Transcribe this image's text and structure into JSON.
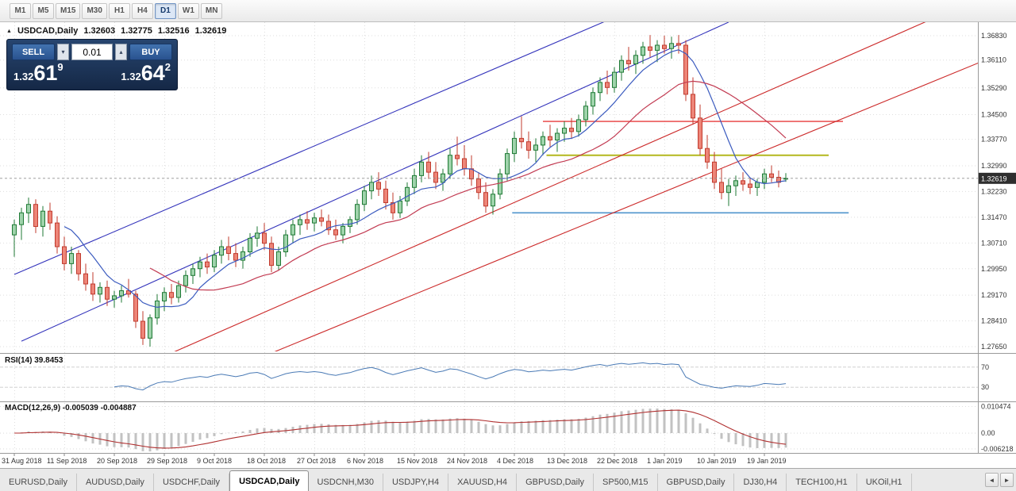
{
  "toolbar": {
    "timeframes": [
      {
        "label": "M1"
      },
      {
        "label": "M5"
      },
      {
        "label": "M15"
      },
      {
        "label": "M30"
      },
      {
        "label": "H1"
      },
      {
        "label": "H4"
      },
      {
        "label": "D1",
        "active": true
      },
      {
        "label": "W1"
      },
      {
        "label": "MN"
      }
    ]
  },
  "quote_bar": {
    "collapse_icon": "▲",
    "symbol": "USDCAD,Daily",
    "open": "1.32603",
    "high": "1.32775",
    "low": "1.32516",
    "close": "1.32619"
  },
  "one_click": {
    "sell_label": "SELL",
    "buy_label": "BUY",
    "lot_size": "0.01",
    "dropdown_icon": "▾",
    "up_icon": "▴",
    "bid": {
      "prefix": "1.32",
      "big": "61",
      "sup": "9"
    },
    "ask": {
      "prefix": "1.32",
      "big": "64",
      "sup": "2"
    }
  },
  "indicators": {
    "rsi_label": "RSI(14) 39.8453",
    "macd_label": "MACD(12,26,9) -0.005039 -0.004887"
  },
  "chart_data": {
    "type": "candlestick",
    "symbol": "USDCAD",
    "timeframe": "Daily",
    "current_price": 1.32619,
    "price_ticks": [
      1.3683,
      1.3611,
      1.3529,
      1.345,
      1.3377,
      1.3299,
      1.3223,
      1.3147,
      1.3071,
      1.2995,
      1.2917,
      1.2841,
      1.2765
    ],
    "date_labels": [
      "31 Aug 2018",
      "11 Sep 2018",
      "20 Sep 2018",
      "29 Sep 2018",
      "9 Oct 2018",
      "18 Oct 2018",
      "27 Oct 2018",
      "6 Nov 2018",
      "15 Nov 2018",
      "24 Nov 2018",
      "4 Dec 2018",
      "13 Dec 2018",
      "22 Dec 2018",
      "1 Jan 2019",
      "10 Jan 2019",
      "19 Jan 2019"
    ],
    "label_every": 7,
    "ma_fast_period": 8,
    "ma_slow_period": 20,
    "horizontal_lines": [
      {
        "price": 1.343,
        "color": "#e83b3b",
        "width": 1.4,
        "from_bar": 74,
        "to_bar": 116
      },
      {
        "price": 1.333,
        "color": "#b4b81e",
        "width": 2,
        "from_bar": 74.5,
        "to_bar": 114
      },
      {
        "price": 1.316,
        "color": "#4f94cd",
        "width": 1.6,
        "from_bar": 69.7,
        "to_bar": 116.8
      }
    ],
    "trend_lines": [
      {
        "color": "#3333bb",
        "bar1": 0,
        "price1": 1.2978,
        "bar2": 83,
        "price2": 1.3728
      },
      {
        "color": "#3333bb",
        "bar1": 1,
        "price1": 1.2781,
        "bar2": 100,
        "price2": 1.3723
      },
      {
        "color": "#cc2a2a",
        "bar1": 22,
        "price1": 1.2746,
        "bar2": 128,
        "price2": 1.3728
      },
      {
        "color": "#cc2a2a",
        "bar1": 36,
        "price1": 1.2746,
        "bar2": 141,
        "price2": 1.3655
      }
    ],
    "rsi": {
      "period": 14,
      "levels": [
        70,
        30
      ],
      "current": "39.8453"
    },
    "macd": {
      "fast": 12,
      "slow": 26,
      "signal": 9,
      "current_main": "-0.005039",
      "current_signal": "-0.004887",
      "scale_labels": [
        {
          "text": "0.010474",
          "value": 0.010474
        },
        {
          "text": "0.00",
          "value": 0
        },
        {
          "text": "-0.006218",
          "value": -0.006218
        }
      ]
    },
    "colors": {
      "bull_fill": "#9fd3ab",
      "bull_stroke": "#1f7a35",
      "bear_fill": "#ed8578",
      "bear_stroke": "#c13b2e",
      "ma_fast": "#3b5bbf",
      "ma_slow": "#c23b52",
      "rsi_line": "#4a7ab5",
      "macd_hist": "#c2c2c2",
      "macd_signal": "#b03030",
      "grid": "#dedede",
      "scale_text": "#333333",
      "badge_bg": "#2e2e2e"
    },
    "ohlc": [
      [
        1.3095,
        1.314,
        1.303,
        1.3125
      ],
      [
        1.3125,
        1.3175,
        1.308,
        1.316
      ],
      [
        1.316,
        1.3205,
        1.313,
        1.3185
      ],
      [
        1.3185,
        1.32,
        1.31,
        1.312
      ],
      [
        1.312,
        1.318,
        1.309,
        1.3165
      ],
      [
        1.3165,
        1.319,
        1.311,
        1.313
      ],
      [
        1.313,
        1.315,
        1.304,
        1.306
      ],
      [
        1.306,
        1.309,
        1.299,
        1.301
      ],
      [
        1.301,
        1.306,
        1.298,
        1.304
      ],
      [
        1.304,
        1.305,
        1.296,
        1.298
      ],
      [
        1.298,
        1.301,
        1.293,
        1.295
      ],
      [
        1.295,
        1.2985,
        1.29,
        1.292
      ],
      [
        1.292,
        1.2955,
        1.2895,
        1.294
      ],
      [
        1.294,
        1.296,
        1.2885,
        1.2905
      ],
      [
        1.2905,
        1.293,
        1.288,
        1.2915
      ],
      [
        1.2915,
        1.2945,
        1.2895,
        1.293
      ],
      [
        1.293,
        1.2965,
        1.291,
        1.292
      ],
      [
        1.292,
        1.293,
        1.282,
        1.284
      ],
      [
        1.284,
        1.287,
        1.277,
        1.279
      ],
      [
        1.279,
        1.286,
        1.2765,
        1.285
      ],
      [
        1.285,
        1.292,
        1.283,
        1.29
      ],
      [
        1.29,
        1.294,
        1.287,
        1.2925
      ],
      [
        1.2925,
        1.295,
        1.289,
        1.291
      ],
      [
        1.291,
        1.296,
        1.2895,
        1.2945
      ],
      [
        1.2945,
        1.299,
        1.2925,
        1.2975
      ],
      [
        1.2975,
        1.301,
        1.295,
        1.2995
      ],
      [
        1.2995,
        1.303,
        1.297,
        1.3015
      ],
      [
        1.3015,
        1.304,
        1.298,
        1.3
      ],
      [
        1.3,
        1.305,
        1.2985,
        1.3035
      ],
      [
        1.3035,
        1.308,
        1.301,
        1.306
      ],
      [
        1.306,
        1.309,
        1.302,
        1.304
      ],
      [
        1.304,
        1.307,
        1.3,
        1.302
      ],
      [
        1.302,
        1.306,
        1.2995,
        1.3045
      ],
      [
        1.3045,
        1.31,
        1.303,
        1.3085
      ],
      [
        1.3085,
        1.312,
        1.306,
        1.31
      ],
      [
        1.31,
        1.313,
        1.305,
        1.307
      ],
      [
        1.307,
        1.309,
        1.2985,
        1.3005
      ],
      [
        1.3005,
        1.306,
        1.299,
        1.3045
      ],
      [
        1.3045,
        1.311,
        1.303,
        1.3095
      ],
      [
        1.3095,
        1.314,
        1.307,
        1.3125
      ],
      [
        1.3125,
        1.3155,
        1.3095,
        1.314
      ],
      [
        1.314,
        1.3165,
        1.311,
        1.313
      ],
      [
        1.313,
        1.316,
        1.3105,
        1.3145
      ],
      [
        1.3145,
        1.317,
        1.312,
        1.3135
      ],
      [
        1.3135,
        1.3155,
        1.3095,
        1.311
      ],
      [
        1.311,
        1.314,
        1.308,
        1.3095
      ],
      [
        1.3095,
        1.313,
        1.307,
        1.312
      ],
      [
        1.312,
        1.315,
        1.31,
        1.314
      ],
      [
        1.314,
        1.32,
        1.3125,
        1.3185
      ],
      [
        1.3185,
        1.324,
        1.3165,
        1.3225
      ],
      [
        1.3225,
        1.327,
        1.32,
        1.325
      ],
      [
        1.325,
        1.328,
        1.321,
        1.323
      ],
      [
        1.323,
        1.3255,
        1.317,
        1.319
      ],
      [
        1.319,
        1.322,
        1.314,
        1.316
      ],
      [
        1.316,
        1.321,
        1.3145,
        1.3195
      ],
      [
        1.3195,
        1.325,
        1.318,
        1.3235
      ],
      [
        1.3235,
        1.329,
        1.3215,
        1.327
      ],
      [
        1.327,
        1.333,
        1.325,
        1.331
      ],
      [
        1.331,
        1.334,
        1.326,
        1.328
      ],
      [
        1.328,
        1.331,
        1.323,
        1.325
      ],
      [
        1.325,
        1.329,
        1.3225,
        1.3275
      ],
      [
        1.3275,
        1.335,
        1.326,
        1.333
      ],
      [
        1.333,
        1.3385,
        1.33,
        1.332
      ],
      [
        1.332,
        1.336,
        1.327,
        1.329
      ],
      [
        1.329,
        1.333,
        1.324,
        1.326
      ],
      [
        1.326,
        1.328,
        1.32,
        1.322
      ],
      [
        1.322,
        1.325,
        1.316,
        1.318
      ],
      [
        1.318,
        1.323,
        1.3155,
        1.3215
      ],
      [
        1.3215,
        1.329,
        1.32,
        1.3275
      ],
      [
        1.3275,
        1.335,
        1.3255,
        1.3335
      ],
      [
        1.3335,
        1.34,
        1.331,
        1.338
      ],
      [
        1.338,
        1.3445,
        1.335,
        1.337
      ],
      [
        1.337,
        1.34,
        1.332,
        1.3345
      ],
      [
        1.3345,
        1.338,
        1.331,
        1.336
      ],
      [
        1.336,
        1.34,
        1.333,
        1.3385
      ],
      [
        1.3385,
        1.342,
        1.3355,
        1.3375
      ],
      [
        1.3375,
        1.341,
        1.334,
        1.3395
      ],
      [
        1.3395,
        1.343,
        1.337,
        1.341
      ],
      [
        1.341,
        1.344,
        1.338,
        1.34
      ],
      [
        1.34,
        1.345,
        1.3385,
        1.3435
      ],
      [
        1.3435,
        1.349,
        1.3415,
        1.3475
      ],
      [
        1.3475,
        1.353,
        1.345,
        1.3515
      ],
      [
        1.3515,
        1.356,
        1.349,
        1.3545
      ],
      [
        1.3545,
        1.358,
        1.351,
        1.353
      ],
      [
        1.353,
        1.359,
        1.3515,
        1.3575
      ],
      [
        1.3575,
        1.3625,
        1.355,
        1.361
      ],
      [
        1.361,
        1.365,
        1.358,
        1.36
      ],
      [
        1.36,
        1.364,
        1.357,
        1.3625
      ],
      [
        1.3625,
        1.3665,
        1.36,
        1.365
      ],
      [
        1.365,
        1.3685,
        1.362,
        1.364
      ],
      [
        1.364,
        1.367,
        1.3605,
        1.3655
      ],
      [
        1.3655,
        1.3683,
        1.363,
        1.3645
      ],
      [
        1.3645,
        1.368,
        1.3615,
        1.366
      ],
      [
        1.366,
        1.3685,
        1.363,
        1.3655
      ],
      [
        1.3655,
        1.367,
        1.349,
        1.351
      ],
      [
        1.351,
        1.356,
        1.342,
        1.344
      ],
      [
        1.344,
        1.348,
        1.333,
        1.335
      ],
      [
        1.335,
        1.339,
        1.329,
        1.331
      ],
      [
        1.331,
        1.334,
        1.323,
        1.325
      ],
      [
        1.325,
        1.329,
        1.32,
        1.322
      ],
      [
        1.322,
        1.326,
        1.318,
        1.324
      ],
      [
        1.324,
        1.327,
        1.321,
        1.3255
      ],
      [
        1.3255,
        1.328,
        1.3225,
        1.3245
      ],
      [
        1.3245,
        1.3265,
        1.3215,
        1.3235
      ],
      [
        1.3235,
        1.326,
        1.321,
        1.325
      ],
      [
        1.325,
        1.329,
        1.323,
        1.3275
      ],
      [
        1.3275,
        1.33,
        1.325,
        1.3265
      ],
      [
        1.3265,
        1.3285,
        1.3235,
        1.325
      ],
      [
        1.32603,
        1.32775,
        1.32516,
        1.32619
      ]
    ]
  },
  "tabs": {
    "scroll_left": "◄",
    "scroll_right": "►",
    "items": [
      {
        "label": "EURUSD,Daily"
      },
      {
        "label": "AUDUSD,Daily"
      },
      {
        "label": "USDCHF,Daily"
      },
      {
        "label": "USDCAD,Daily",
        "active": true
      },
      {
        "label": "USDCNH,M30"
      },
      {
        "label": "USDJPY,H4"
      },
      {
        "label": "XAUUSD,H4"
      },
      {
        "label": "GBPUSD,Daily"
      },
      {
        "label": "SP500,M15"
      },
      {
        "label": "GBPUSD,Daily"
      },
      {
        "label": "DJ30,H4"
      },
      {
        "label": "TECH100,H1"
      },
      {
        "label": "UKOil,H1"
      }
    ]
  }
}
